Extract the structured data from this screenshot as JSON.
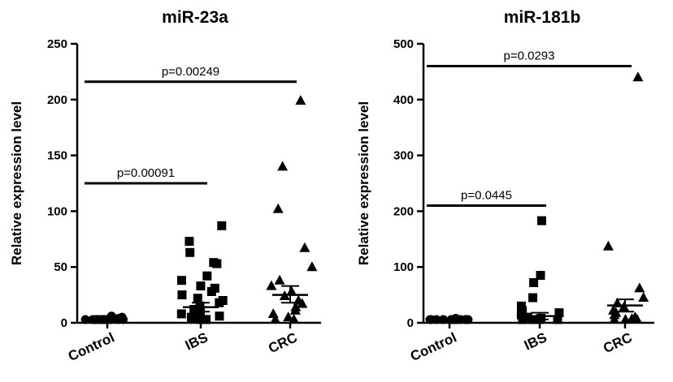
{
  "chart_data": [
    {
      "type": "scatter",
      "title": "miR-23a",
      "ylabel": "Relative expression level",
      "ylim": [
        0,
        250
      ],
      "yticks": [
        "0",
        "50",
        "100",
        "150",
        "200",
        "250"
      ],
      "categories": [
        "Control",
        "IBS",
        "CRC"
      ],
      "series": [
        {
          "category": "Control",
          "marker": "circle",
          "values": [
            0.5,
            1,
            1,
            2,
            3,
            5,
            4,
            1,
            0.5,
            1,
            2,
            6,
            5,
            1,
            0.5,
            1,
            2,
            1
          ],
          "mean": 1.5
        },
        {
          "category": "IBS",
          "marker": "square",
          "values": [
            87,
            73,
            63,
            54,
            53,
            42,
            38,
            33,
            31,
            28,
            25,
            22,
            20,
            18,
            15,
            12,
            10,
            8,
            6,
            5,
            4,
            3,
            2,
            1
          ],
          "mean": 14,
          "sem": [
            10,
            18
          ]
        },
        {
          "category": "CRC",
          "marker": "triangle",
          "values": [
            199,
            140,
            102,
            67,
            50,
            38,
            33,
            28,
            24,
            20,
            17,
            14,
            11,
            8,
            5,
            3,
            2
          ],
          "mean": 25,
          "sem": [
            18,
            33
          ]
        }
      ],
      "comparisons": [
        {
          "from": "Control",
          "to": "IBS",
          "y": 125,
          "label": "p=0.00091"
        },
        {
          "from": "Control",
          "to": "CRC",
          "y": 216,
          "label": "p=0.00249"
        }
      ]
    },
    {
      "type": "scatter",
      "title": "miR-181b",
      "ylabel": "Relative expression level",
      "ylim": [
        0,
        500
      ],
      "yticks": [
        "0",
        "100",
        "200",
        "300",
        "400",
        "500"
      ],
      "categories": [
        "Control",
        "IBS",
        "CRC"
      ],
      "series": [
        {
          "category": "Control",
          "marker": "circle",
          "values": [
            0.5,
            1,
            1,
            2,
            3,
            5,
            8,
            4,
            1,
            0.5,
            1,
            2,
            1,
            0.5
          ],
          "mean": 1.5
        },
        {
          "category": "IBS",
          "marker": "square",
          "values": [
            183,
            85,
            72,
            45,
            30,
            22,
            18,
            14,
            10,
            8,
            6,
            4,
            3,
            2,
            1
          ],
          "mean": 12,
          "sem": [
            6,
            18
          ]
        },
        {
          "category": "CRC",
          "marker": "triangle",
          "values": [
            440,
            137,
            62,
            45,
            35,
            28,
            22,
            18,
            14,
            10,
            7,
            4,
            2,
            1
          ],
          "mean": 31,
          "sem": [
            20,
            42
          ]
        }
      ],
      "comparisons": [
        {
          "from": "Control",
          "to": "IBS",
          "y": 210,
          "label": "p=0.0445"
        },
        {
          "from": "Control",
          "to": "CRC",
          "y": 460,
          "label": "p=0.0293"
        }
      ]
    }
  ]
}
